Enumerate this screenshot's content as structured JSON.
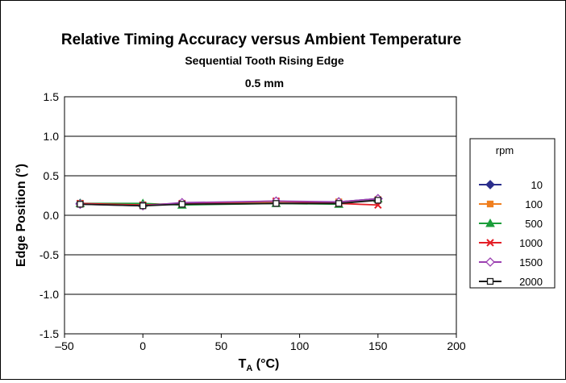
{
  "chart_data": {
    "type": "line",
    "title": "Relative Timing Accuracy versus Ambient Temperature",
    "subtitle": "Sequential Tooth Rising Edge",
    "subtitle2": "0.5 mm",
    "xlabel_main": "T",
    "xlabel_sub": "A",
    "xlabel_unit": " (°C)",
    "ylabel": "Edge Position (°)",
    "xlim": [
      -50,
      200
    ],
    "ylim": [
      -1.5,
      1.5
    ],
    "x_ticks": [
      -50,
      0,
      50,
      100,
      150,
      200
    ],
    "x_tick_labels": [
      "–50",
      "0",
      "50",
      "100",
      "150",
      "200"
    ],
    "y_ticks": [
      1.5,
      1.0,
      0.5,
      0.0,
      -0.5,
      -1.0,
      -1.5
    ],
    "y_tick_labels": [
      "1.5",
      "1.0",
      "0.5",
      "0.0",
      "-0.5",
      "-1.0",
      "-1.5"
    ],
    "grid": "horizontal",
    "legend_title": "rpm",
    "legend_position": "right",
    "x": [
      -40,
      0,
      25,
      85,
      125,
      150
    ],
    "series": [
      {
        "name": "10",
        "color": "#2b2e8c",
        "marker": "diamond-filled",
        "values": [
          0.15,
          0.13,
          0.15,
          0.17,
          0.17,
          0.21
        ]
      },
      {
        "name": "100",
        "color": "#f07f1f",
        "marker": "square-filled",
        "values": [
          0.15,
          0.13,
          0.15,
          0.17,
          0.17,
          0.2
        ]
      },
      {
        "name": "500",
        "color": "#1a9e3a",
        "marker": "triangle-filled",
        "values": [
          0.15,
          0.15,
          0.13,
          0.15,
          0.14,
          0.21
        ]
      },
      {
        "name": "1000",
        "color": "#e41e26",
        "marker": "x",
        "values": [
          0.15,
          0.13,
          0.15,
          0.18,
          0.15,
          0.13
        ]
      },
      {
        "name": "1500",
        "color": "#9b3fb0",
        "marker": "diamond-open",
        "values": [
          0.14,
          0.12,
          0.16,
          0.18,
          0.17,
          0.21
        ]
      },
      {
        "name": "2000",
        "color": "#1a1a1a",
        "marker": "square-open",
        "values": [
          0.14,
          0.12,
          0.14,
          0.15,
          0.15,
          0.19
        ]
      }
    ]
  }
}
